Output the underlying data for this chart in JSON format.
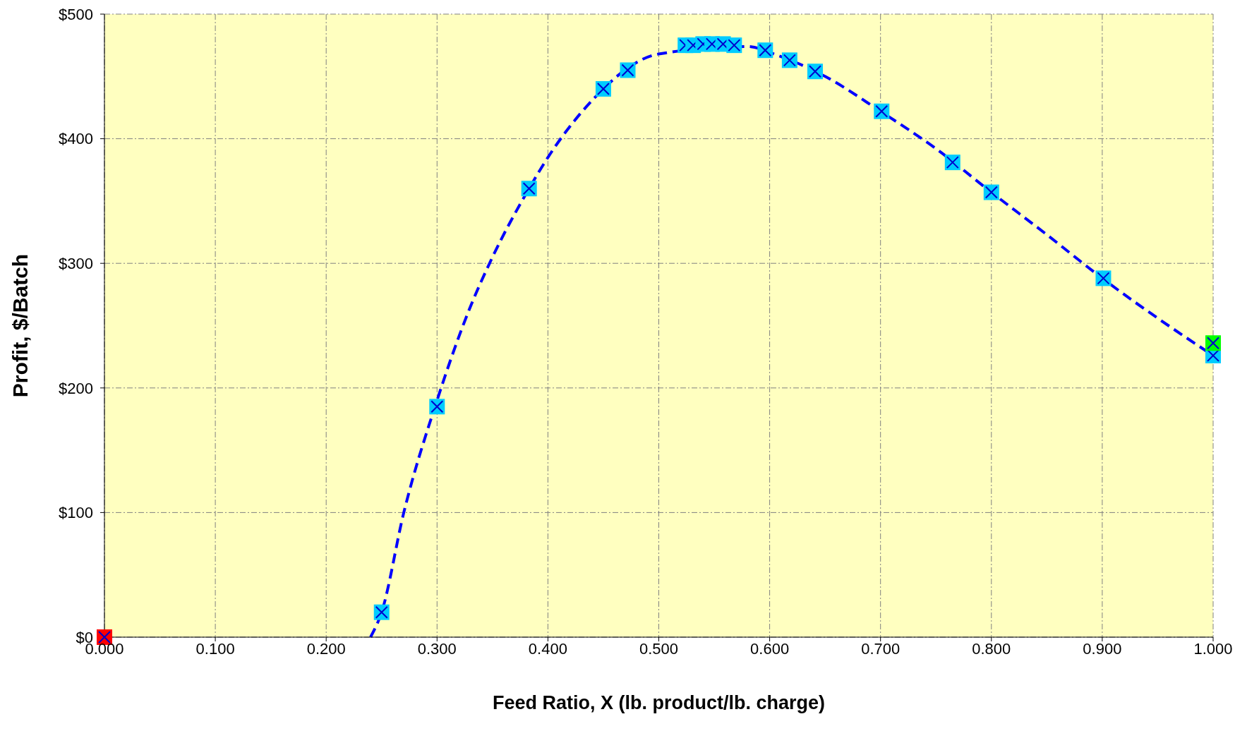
{
  "chart_data": {
    "type": "scatter",
    "xlabel": "Feed Ratio,  X (lb. product/lb. charge)",
    "ylabel": "Profit,  $/Batch",
    "xlim": [
      0,
      1
    ],
    "ylim": [
      0,
      500
    ],
    "xticks": [
      {
        "value": 0,
        "label": "0.000"
      },
      {
        "value": 0.1,
        "label": "0.100"
      },
      {
        "value": 0.2,
        "label": "0.200"
      },
      {
        "value": 0.3,
        "label": "0.300"
      },
      {
        "value": 0.4,
        "label": "0.400"
      },
      {
        "value": 0.5,
        "label": "0.500"
      },
      {
        "value": 0.6,
        "label": "0.600"
      },
      {
        "value": 0.7,
        "label": "0.700"
      },
      {
        "value": 0.8,
        "label": "0.800"
      },
      {
        "value": 0.9,
        "label": "0.900"
      },
      {
        "value": 1,
        "label": "1.000"
      }
    ],
    "yticks": [
      {
        "value": 0,
        "label": "$0"
      },
      {
        "value": 100,
        "label": "$100"
      },
      {
        "value": 200,
        "label": "$200"
      },
      {
        "value": 300,
        "label": "$300"
      },
      {
        "value": 400,
        "label": "$400"
      },
      {
        "value": 500,
        "label": "$500"
      }
    ],
    "grid": true,
    "series": [
      {
        "type": "line",
        "color": "#0000ff",
        "line_style": "dashed",
        "marker": "none",
        "x": [
          0.24,
          0.25,
          0.27,
          0.3,
          0.33,
          0.35,
          0.383,
          0.4,
          0.435,
          0.5,
          0.58,
          0.607,
          0.65,
          0.7,
          0.75,
          0.8,
          0.85,
          0.9,
          0.95,
          1.0
        ],
        "values": [
          0,
          20,
          100,
          190,
          265,
          305,
          360,
          385,
          426,
          468,
          474,
          467,
          450,
          422,
          392,
          357,
          323,
          288,
          256,
          226
        ]
      },
      {
        "color": "#00ccff",
        "marker": "square",
        "x": [
          0.25,
          0.3,
          0.383,
          0.45,
          0.472,
          0.524,
          0.531,
          0.54,
          0.548,
          0.558,
          0.568,
          0.596,
          0.618,
          0.641,
          0.701,
          0.765,
          0.8,
          0.901,
          1.0
        ],
        "values": [
          20,
          185,
          360,
          440,
          455,
          475,
          475,
          476,
          476,
          476,
          475,
          471,
          463,
          454,
          422,
          381,
          357,
          288,
          226
        ]
      },
      {
        "color": "#ff0000",
        "marker": "square",
        "x": [
          0
        ],
        "values": [
          0
        ]
      },
      {
        "color": "#00ff00",
        "marker": "square",
        "x": [
          1
        ],
        "values": [
          236
        ]
      }
    ]
  }
}
